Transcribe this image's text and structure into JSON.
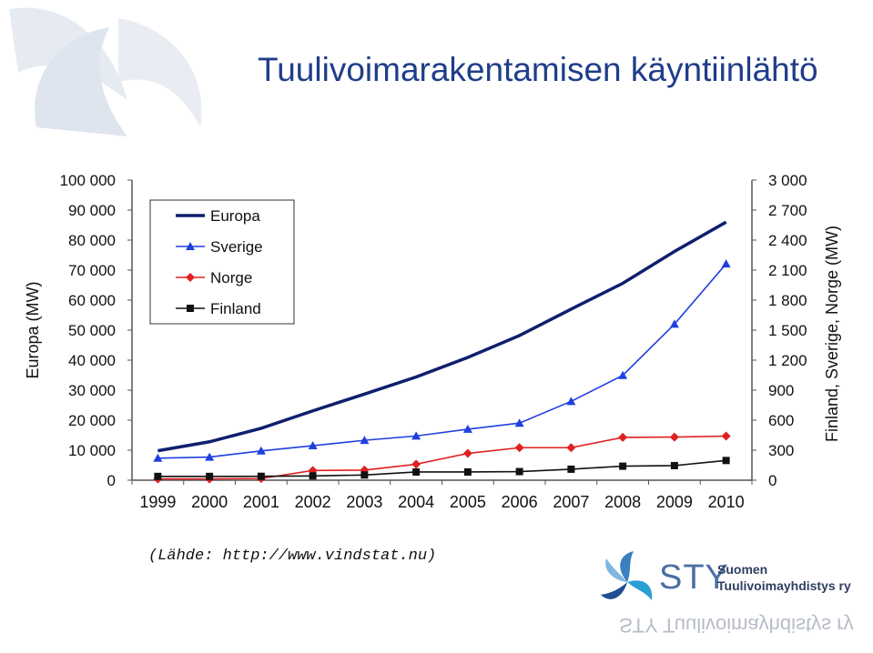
{
  "slide": {
    "title": "Tuulivoimarakentamisen käyntiinlähtö",
    "source": "(Lähde: http://www.vindstat.nu)"
  },
  "logo": {
    "abbr": "STY",
    "line1": "Suomen",
    "line2": "Tuulivoimayhdistys ry",
    "reflection": "STY Tuulivoimayhdistys ry"
  },
  "colors": {
    "title": "#1f3d8a",
    "europa": "#0f1f6e",
    "sverige": "#1f3fe0",
    "norge": "#e02020",
    "finland": "#111111"
  },
  "chart_data": {
    "type": "line",
    "x": [
      "1999",
      "2000",
      "2001",
      "2002",
      "2003",
      "2004",
      "2005",
      "2006",
      "2007",
      "2008",
      "2009",
      "2010"
    ],
    "left_axis": {
      "label": "Europa (MW)",
      "ylim": [
        0,
        100000
      ],
      "ticks": [
        0,
        10000,
        20000,
        30000,
        40000,
        50000,
        60000,
        70000,
        80000,
        90000,
        100000
      ],
      "tick_labels": [
        "0",
        "10 000",
        "20 000",
        "30 000",
        "40 000",
        "50 000",
        "60 000",
        "70 000",
        "80 000",
        "90 000",
        "100 000"
      ]
    },
    "right_axis": {
      "label": "Finland, Sverige, Norge (MW)",
      "ylim": [
        0,
        3000
      ],
      "ticks": [
        0,
        300,
        600,
        900,
        1200,
        1500,
        1800,
        2100,
        2400,
        2700,
        3000
      ],
      "tick_labels": [
        "0",
        "300",
        "600",
        "900",
        "1 200",
        "1 500",
        "1 800",
        "2 100",
        "2 400",
        "2 700",
        "3 000"
      ]
    },
    "series": [
      {
        "name": "Europa",
        "axis": "left",
        "marker": "none",
        "color": "#0f1f6e",
        "values": [
          9800,
          12800,
          17300,
          23100,
          28700,
          34400,
          40900,
          48200,
          57000,
          65600,
          76200,
          86000
        ]
      },
      {
        "name": "Sverige",
        "axis": "right",
        "marker": "triangle",
        "color": "#1f3fe0",
        "values": [
          220,
          231,
          293,
          345,
          399,
          442,
          510,
          571,
          788,
          1048,
          1560,
          2163
        ]
      },
      {
        "name": "Norge",
        "axis": "right",
        "marker": "diamond",
        "color": "#e02020",
        "values": [
          13,
          13,
          17,
          97,
          101,
          160,
          268,
          325,
          325,
          428,
          431,
          441
        ]
      },
      {
        "name": "Finland",
        "axis": "right",
        "marker": "square",
        "color": "#111111",
        "values": [
          38,
          38,
          39,
          43,
          52,
          82,
          82,
          86,
          110,
          140,
          146,
          197
        ]
      }
    ],
    "legend_position": "top-left",
    "grid": false
  }
}
